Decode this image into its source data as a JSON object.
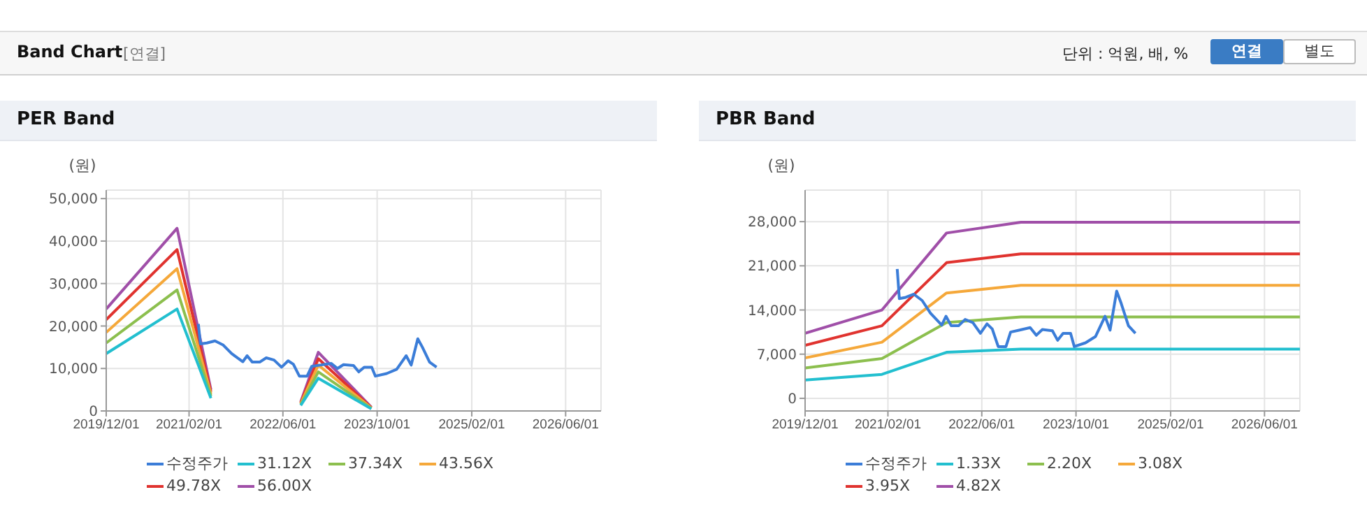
{
  "chart_data": [
    {
      "type": "line",
      "title": "PER Band",
      "ylabel": "(원)",
      "annotations": [
        "Band Chart",
        "[연결]",
        "단위 : 억원, 배, %",
        "연결",
        "별도"
      ],
      "x": [
        "2019-12-01",
        "2020-12-01",
        "2021-05-25",
        "2022-01-01",
        "2022-09-01",
        "2022-12-01",
        "2023-09-01"
      ],
      "series": [
        {
          "name": "수정주가",
          "color": "#3b7dd8",
          "x": [
            "2021-03-21",
            "2021-04-01",
            "2021-05-04",
            "2021-06-15",
            "2021-07-28",
            "2021-09-09",
            "2021-11-06",
            "2021-11-28",
            "2021-12-25",
            "2022-02-01",
            "2022-03-07",
            "2022-04-16",
            "2022-05-25",
            "2022-06-28",
            "2022-07-25",
            "2022-08-25",
            "2022-10-04",
            "2022-10-28",
            "2022-12-10",
            "2023-02-06",
            "2023-03-10",
            "2023-04-10",
            "2023-06-01",
            "2023-06-28",
            "2023-07-26",
            "2023-09-03",
            "2023-09-22",
            "2023-11-19",
            "2024-01-10",
            "2024-02-28",
            "2024-03-25",
            "2024-04-28",
            "2024-05-22",
            "2024-06-28",
            "2024-08-03"
          ],
          "values": [
            20500,
            15800,
            16000,
            16500,
            15500,
            13500,
            11600,
            13000,
            11500,
            11500,
            12500,
            12000,
            10300,
            11800,
            11000,
            8200,
            8200,
            10500,
            10800,
            11200,
            10000,
            10900,
            10700,
            9200,
            10300,
            10300,
            8200,
            8800,
            9800,
            13000,
            10800,
            17000,
            15000,
            11500,
            10300
          ]
        },
        {
          "name": "31.12X",
          "color": "#22bfcf",
          "values": [
            13500,
            24000,
            3000,
            null,
            1300,
            7700,
            500
          ]
        },
        {
          "name": "37.34X",
          "color": "#8cbf4e",
          "values": [
            16000,
            28500,
            3500,
            null,
            1500,
            9200,
            600
          ]
        },
        {
          "name": "43.56X",
          "color": "#f5a83a",
          "values": [
            18500,
            33500,
            4000,
            null,
            1700,
            10800,
            700
          ]
        },
        {
          "name": "49.78X",
          "color": "#e0332f",
          "values": [
            21500,
            38000,
            4500,
            null,
            1900,
            12300,
            800
          ]
        },
        {
          "name": "56.00X",
          "color": "#a04fa8",
          "values": [
            24000,
            43000,
            5000,
            null,
            2100,
            13800,
            900
          ]
        }
      ],
      "xlim": [
        "2019-12-01",
        "2026-12-01"
      ],
      "xticks": [
        {
          "value": "2019-12-01",
          "label": "2019/12/01"
        },
        {
          "value": "2021-02-01",
          "label": "2021/02/01"
        },
        {
          "value": "2022-06-01",
          "label": "2022/06/01"
        },
        {
          "value": "2023-10-01",
          "label": "2023/10/01"
        },
        {
          "value": "2025-02-01",
          "label": "2025/02/01"
        },
        {
          "value": "2026-06-01",
          "label": "2026/06/01"
        }
      ],
      "ylim": [
        0,
        52000
      ],
      "yticks": [
        {
          "value": 0,
          "label": "0"
        },
        {
          "value": 10000,
          "label": "10,000"
        },
        {
          "value": 20000,
          "label": "20,000"
        },
        {
          "value": 30000,
          "label": "30,000"
        },
        {
          "value": 40000,
          "label": "40,000"
        },
        {
          "value": 50000,
          "label": "50,000"
        }
      ],
      "grid": true,
      "legend": "bottom",
      "marker": "none"
    },
    {
      "type": "line",
      "title": "PBR Band",
      "ylabel": "(원)",
      "x": [
        "2019-12-01",
        "2021-01-01",
        "2021-12-01",
        "2022-12-20",
        "2026-12-01"
      ],
      "series": [
        {
          "name": "수정주가",
          "color": "#3b7dd8",
          "x": [
            "2021-03-21",
            "2021-04-01",
            "2021-05-04",
            "2021-06-15",
            "2021-07-28",
            "2021-09-09",
            "2021-11-06",
            "2021-11-28",
            "2021-12-25",
            "2022-02-01",
            "2022-03-07",
            "2022-04-16",
            "2022-05-25",
            "2022-06-28",
            "2022-07-25",
            "2022-08-25",
            "2022-10-04",
            "2022-10-28",
            "2022-12-10",
            "2023-02-06",
            "2023-03-10",
            "2023-04-10",
            "2023-06-01",
            "2023-06-28",
            "2023-07-26",
            "2023-09-03",
            "2023-09-22",
            "2023-11-19",
            "2024-01-10",
            "2024-02-28",
            "2024-03-25",
            "2024-04-28",
            "2024-05-22",
            "2024-06-28",
            "2024-08-03"
          ],
          "values": [
            20500,
            15800,
            16000,
            16500,
            15500,
            13500,
            11600,
            13000,
            11500,
            11500,
            12500,
            12000,
            10300,
            11800,
            11000,
            8200,
            8200,
            10500,
            10800,
            11200,
            10000,
            10900,
            10700,
            9200,
            10300,
            10300,
            8200,
            8800,
            9800,
            13000,
            10800,
            17000,
            15000,
            11500,
            10300
          ]
        },
        {
          "name": "1.33X",
          "color": "#22bfcf",
          "values": [
            2900,
            3800,
            7300,
            7800,
            7800
          ]
        },
        {
          "name": "2.20X",
          "color": "#8cbf4e",
          "values": [
            4800,
            6300,
            12000,
            12900,
            12900
          ]
        },
        {
          "name": "3.08X",
          "color": "#f5a83a",
          "values": [
            6400,
            8900,
            16700,
            17900,
            17900
          ]
        },
        {
          "name": "3.95X",
          "color": "#e0332f",
          "values": [
            8400,
            11500,
            21500,
            22900,
            22900
          ]
        },
        {
          "name": "4.82X",
          "color": "#a04fa8",
          "values": [
            10300,
            14000,
            26200,
            27900,
            27900
          ]
        }
      ],
      "xlim": [
        "2019-12-01",
        "2026-12-01"
      ],
      "xticks": [
        {
          "value": "2019-12-01",
          "label": "2019/12/01"
        },
        {
          "value": "2021-02-01",
          "label": "2021/02/01"
        },
        {
          "value": "2022-06-01",
          "label": "2022/06/01"
        },
        {
          "value": "2023-10-01",
          "label": "2023/10/01"
        },
        {
          "value": "2025-02-01",
          "label": "2025/02/01"
        },
        {
          "value": "2026-06-01",
          "label": "2026/06/01"
        }
      ],
      "ylim": [
        -2000,
        33000
      ],
      "yticks": [
        {
          "value": 0,
          "label": "0"
        },
        {
          "value": 7000,
          "label": "7,000"
        },
        {
          "value": 14000,
          "label": "14,000"
        },
        {
          "value": 21000,
          "label": "21,000"
        },
        {
          "value": 28000,
          "label": "28,000"
        }
      ],
      "grid": true,
      "legend": "bottom",
      "marker": "none"
    }
  ]
}
